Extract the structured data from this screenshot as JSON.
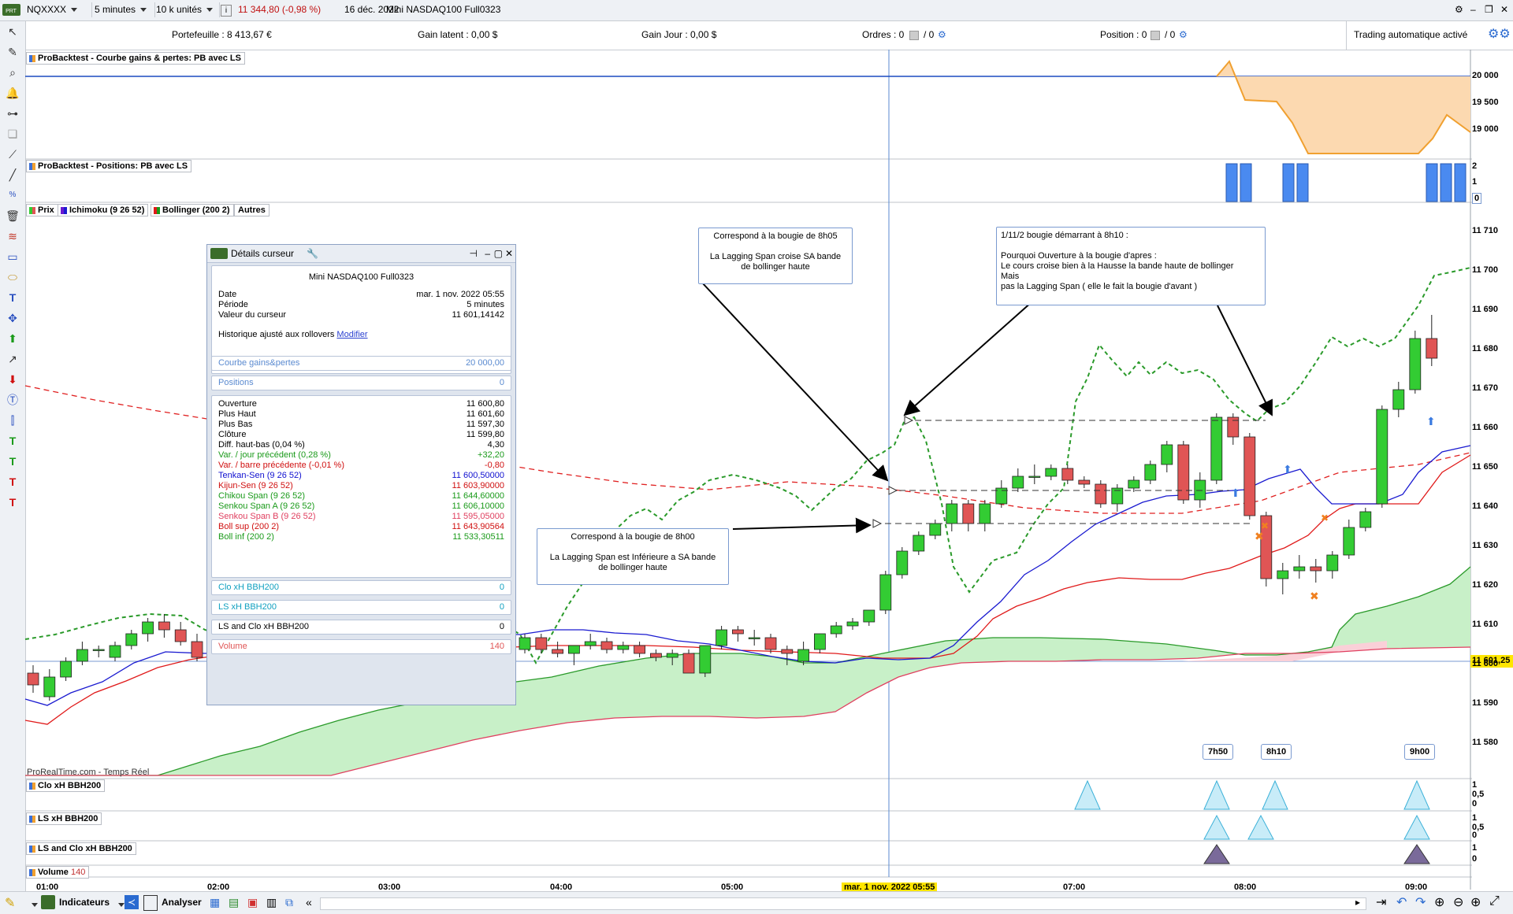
{
  "topbar": {
    "symbol": "NQXXXX",
    "period": "5 minutes",
    "units": "10 k unités",
    "price_change": "11 344,80 (-0,98 %)",
    "date": "16 déc. 2022",
    "instrument": "Mini NASDAQ100 Full0323",
    "info_label": "i"
  },
  "infobar": {
    "portefeuille": "Portefeuille : 8 413,67 €",
    "gain_latent": "Gain latent : 0,00 $",
    "gain_jour": "Gain Jour : 0,00 $",
    "ordres": "Ordres : 0",
    "ordres_b": "/  0",
    "position": "Position : 0",
    "position_b": "/  0",
    "trading_auto": "Trading automatique activé"
  },
  "panels": {
    "equity_label": "ProBacktest - Courbe gains & pertes: PB avec LS",
    "positions_label": "ProBacktest - Positions: PB avec LS",
    "tabs": [
      "Prix",
      "Ichimoku (9 26 52)",
      "Bollinger (200 2)",
      "Autres"
    ],
    "watermark": "ProRealTime.com - Temps Réel",
    "ind1": "Clo xH BBH200",
    "ind2": "LS  xH BBH200",
    "ind3": "LS and Clo xH BBH200",
    "volume_label": "Volume",
    "volume_value": "140"
  },
  "axis": {
    "equity": [
      "20 000",
      "19 500",
      "19 000"
    ],
    "positions": [
      "2",
      "1",
      "0"
    ],
    "price": [
      "11 710",
      "11 700",
      "11 690",
      "11 680",
      "11 670",
      "11 660",
      "11 650",
      "11 640",
      "11 630",
      "11 620",
      "11 610",
      "11 600",
      "11 590",
      "11 580"
    ],
    "current_price": "11 601,25",
    "ind": [
      "1",
      "0,5",
      "0"
    ],
    "ind3": [
      "1",
      "0"
    ],
    "time": [
      "01:00",
      "02:00",
      "03:00",
      "04:00",
      "05:00",
      "07:00",
      "08:00",
      "09:00"
    ],
    "cursor_time": "mar. 1 nov. 2022 05:55"
  },
  "notes": {
    "n1": "Correspond à la bougie de 8h05\n\nLa Lagging Span croise SA bande\nde bollinger haute",
    "n2": "1/11/2   bougie démarrant à 8h10 :\n\nPourquoi  Ouverture à la bougie d'apres :\nLe cours croise bien à la Hausse la bande haute de bollinger\nMais\npas la Lagging Span ( elle le fait la bougie d'avant )",
    "n3": "Correspond à la bougie de 8h00\n\nLa Lagging Span est Inférieure a SA bande\nde bollinger haute",
    "t1": "7h50",
    "t2": "8h10",
    "t3": "9h00"
  },
  "cursor": {
    "title": "Détails curseur",
    "instrument": "Mini NASDAQ100 Full0323",
    "date_label": "Date",
    "date_value": "mar. 1 nov. 2022 05:55",
    "periode_label": "Période",
    "periode_value": "5 minutes",
    "valeur_label": "Valeur du curseur",
    "valeur_value": "11 601,14142",
    "historique": "Historique ajusté aux rollovers",
    "modifier": "Modifier",
    "courbe_label": "Courbe gains&pertes",
    "courbe_value": "20 000,00",
    "positions_label": "Positions",
    "positions_value": "0",
    "rows": [
      {
        "label": "Ouverture",
        "value": "11 600,80",
        "color": "#000000"
      },
      {
        "label": "Plus Haut",
        "value": "11 601,60",
        "color": "#000000"
      },
      {
        "label": "Plus Bas",
        "value": "11 597,30",
        "color": "#000000"
      },
      {
        "label": "Clôture",
        "value": "11 599,80",
        "color": "#000000"
      },
      {
        "label": "Diff. haut-bas (0,04 %)",
        "value": "4,30",
        "color": "#000000"
      },
      {
        "label": "Var. / jour précédent (0,28 %)",
        "value": "+32,20",
        "color": "#1a9a1a"
      },
      {
        "label": "Var. / barre précédente (-0,01 %)",
        "value": "-0,80",
        "color": "#d01010"
      },
      {
        "label": "Tenkan-Sen (9 26 52)",
        "value": "11 600,50000",
        "color": "#1010d0"
      },
      {
        "label": "Kijun-Sen (9 26 52)",
        "value": "11 603,90000",
        "color": "#d01010"
      },
      {
        "label": "Chikou Span (9 26 52)",
        "value": "11 644,60000",
        "color": "#1a9a1a"
      },
      {
        "label": "Senkou Span A (9 26 52)",
        "value": "11 606,10000",
        "color": "#1a9a1a"
      },
      {
        "label": "Senkou Span B (9 26 52)",
        "value": "11 595,05000",
        "color": "#e04060"
      },
      {
        "label": "Boll sup (200 2)",
        "value": "11 643,90564",
        "color": "#d01010"
      },
      {
        "label": "Boll inf (200 2)",
        "value": "11 533,30511",
        "color": "#1a9a1a"
      }
    ],
    "clo_label": "Clo xH BBH200",
    "clo_value": "0",
    "ls_label": "LS  xH BBH200",
    "ls_value": "0",
    "lsclo_label": "LS and Clo xH BBH200",
    "lsclo_value": "0",
    "volume_label": "Volume",
    "volume_value": "140"
  },
  "bottombar": {
    "indicateurs": "Indicateurs",
    "analyser": "Analyser"
  },
  "colors": {
    "bull": "#33cc33",
    "bear": "#e05555",
    "tenkan": "#1a1ad0",
    "kijun": "#e01a1a",
    "chikou": "#2a9a2a",
    "cloud": "#c8f0c8",
    "equity": "#f0a030",
    "positions": "#4a8af0"
  }
}
